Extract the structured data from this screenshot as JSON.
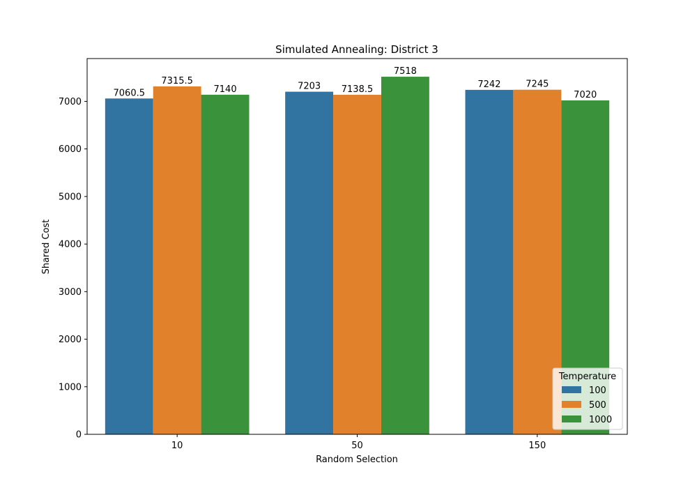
{
  "chart_data": {
    "type": "bar",
    "title": "Simulated Annealing: District 3",
    "xlabel": "Random Selection",
    "ylabel": "Shared Cost",
    "categories": [
      "10",
      "50",
      "150"
    ],
    "ylim": [
      0,
      7900
    ],
    "yticks": [
      0,
      1000,
      2000,
      3000,
      4000,
      5000,
      6000,
      7000
    ],
    "legend_title": "Temperature",
    "legend_position": "lower-right",
    "grid": false,
    "series": [
      {
        "name": "100",
        "color": "#3274a1",
        "values": [
          7060.5,
          7203,
          7242
        ],
        "labels": [
          "7060.5",
          "7203",
          "7242"
        ]
      },
      {
        "name": "500",
        "color": "#e1812c",
        "values": [
          7315.5,
          7138.5,
          7245
        ],
        "labels": [
          "7315.5",
          "7138.5",
          "7245"
        ]
      },
      {
        "name": "1000",
        "color": "#3a923a",
        "values": [
          7140,
          7518,
          7020
        ],
        "labels": [
          "7140",
          "7518",
          "7020"
        ]
      }
    ]
  }
}
